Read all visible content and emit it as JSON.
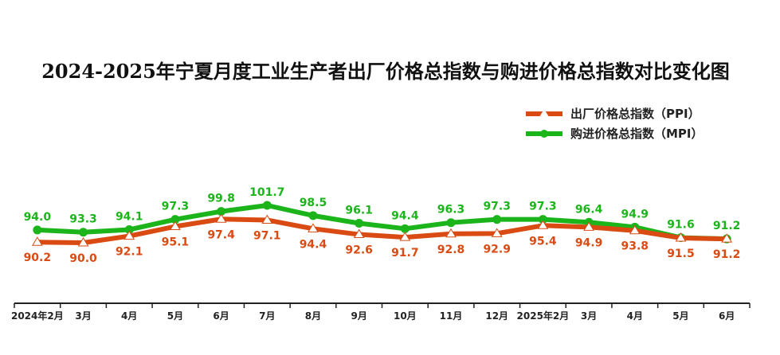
{
  "colors": {
    "ppi": "#d94b12",
    "mpi": "#1bb51b",
    "axis": "#222222"
  },
  "chart_data": {
    "type": "line",
    "title": "2024-2025年宁夏月度工业生产者出厂价格总指数与购进价格总指数对比变化图",
    "categories": [
      "2024年2月",
      "3月",
      "4月",
      "5月",
      "6月",
      "7月",
      "8月",
      "9月",
      "10月",
      "11月",
      "12月",
      "2025年2月",
      "3月",
      "4月",
      "5月",
      "6月"
    ],
    "series": [
      {
        "name": "出厂价格总指数（PPI）",
        "marker": "triangle",
        "values": [
          90.2,
          90.0,
          92.1,
          95.1,
          97.4,
          97.1,
          94.4,
          92.6,
          91.7,
          92.8,
          92.9,
          95.4,
          94.9,
          93.8,
          91.5,
          91.2
        ]
      },
      {
        "name": "购进价格总指数（MPI）",
        "marker": "circle",
        "values": [
          94.0,
          93.3,
          94.1,
          97.3,
          99.8,
          101.7,
          98.5,
          96.1,
          94.4,
          96.3,
          97.3,
          97.3,
          96.4,
          94.9,
          91.6,
          91.2
        ]
      }
    ],
    "legend": "top-right",
    "grid": false,
    "ylim": [
      60,
      110
    ]
  }
}
